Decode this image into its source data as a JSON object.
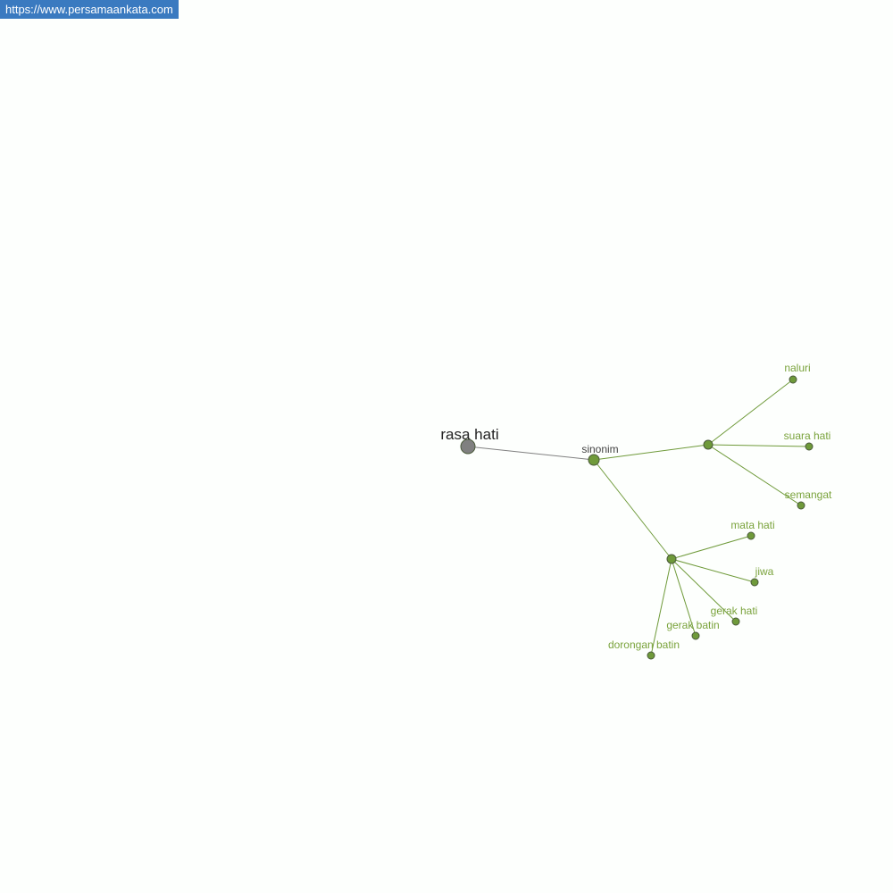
{
  "banner": {
    "text": "https://www.persamaankata.com"
  },
  "colors": {
    "accent": "#7aa33c",
    "node_fill": "#6f9a3a",
    "root_fill": "#808080",
    "edge_root": "#808080",
    "edge": "#6f9a3a",
    "banner_bg": "#3a7ac0"
  },
  "graph": {
    "root": {
      "id": "root",
      "label": "rasa hati"
    },
    "relation": {
      "id": "sinonim",
      "label": "sinonim"
    },
    "hubs": [
      {
        "id": "hub1"
      },
      {
        "id": "hub2"
      }
    ],
    "leaves": [
      {
        "id": "naluri",
        "label": "naluri",
        "parent": "hub1"
      },
      {
        "id": "suara-hati",
        "label": "suara hati",
        "parent": "hub1"
      },
      {
        "id": "semangat",
        "label": "semangat",
        "parent": "hub1"
      },
      {
        "id": "mata-hati",
        "label": "mata hati",
        "parent": "hub2"
      },
      {
        "id": "jiwa",
        "label": "jiwa",
        "parent": "hub2"
      },
      {
        "id": "gerak-hati",
        "label": "gerak hati",
        "parent": "hub2"
      },
      {
        "id": "gerak-batin",
        "label": "gerak batin",
        "parent": "hub2"
      },
      {
        "id": "dorongan-batin",
        "label": "dorongan batin",
        "parent": "hub2"
      }
    ]
  }
}
